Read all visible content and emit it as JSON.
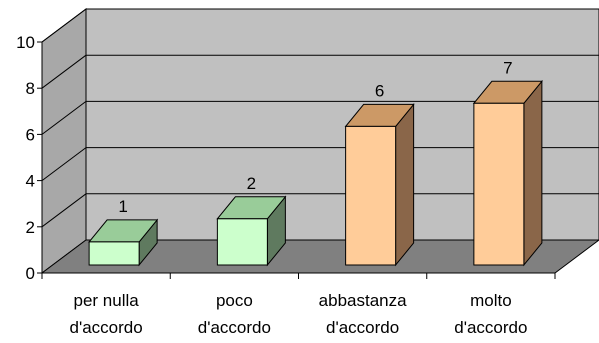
{
  "chart_data": {
    "type": "bar",
    "categories": [
      [
        "per nulla",
        "d'accordo"
      ],
      [
        "poco",
        "d'accordo"
      ],
      [
        "abbastanza",
        "d'accordo"
      ],
      [
        "molto",
        "d'accordo"
      ]
    ],
    "values": [
      1,
      2,
      6,
      7
    ],
    "data_labels": [
      "1",
      "2",
      "6",
      "7"
    ],
    "ylim": [
      0,
      10
    ],
    "yticks": [
      "0",
      "2",
      "4",
      "6",
      "8",
      "10"
    ],
    "title": "",
    "xlabel": "",
    "ylabel": "",
    "grid": true,
    "three_d": true,
    "bar_colors": [
      {
        "front": "#ccffcc",
        "top": "#99cc99",
        "side": "#5f7a5f"
      },
      {
        "front": "#ccffcc",
        "top": "#99cc99",
        "side": "#5f7a5f"
      },
      {
        "front": "#ffcc99",
        "top": "#cc9966",
        "side": "#8a6649"
      },
      {
        "front": "#ffcc99",
        "top": "#cc9966",
        "side": "#8a6649"
      }
    ],
    "colors": {
      "back_wall": "#c0c0c0",
      "side_wall": "#a8a8a8",
      "floor": "#808080",
      "gridline": "#000000",
      "axis": "#000000"
    }
  }
}
